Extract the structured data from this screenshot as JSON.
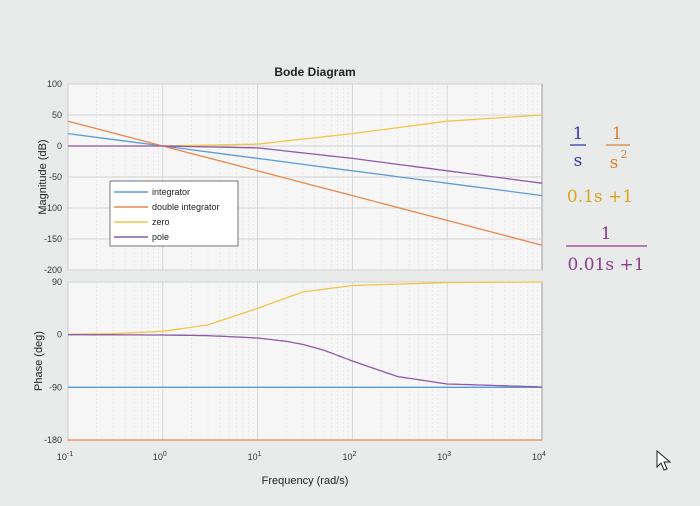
{
  "chart_data": [
    {
      "type": "line",
      "title": "Bode Diagram",
      "panel": "magnitude",
      "ylabel": "Magnitude (dB)",
      "xlabel": "",
      "xscale": "log",
      "xlim": [
        0.1,
        10000
      ],
      "ylim": [
        -200,
        100
      ],
      "yticks": [
        "100",
        "50",
        "0",
        "-50",
        "-100",
        "-150",
        "-200"
      ],
      "grid": true,
      "legend": {
        "placement": "center-left",
        "entries": [
          "integrator",
          "double integrator",
          "zero",
          "pole"
        ]
      },
      "series": [
        {
          "name": "integrator",
          "color": "#5b9bd5",
          "x": [
            0.1,
            10000
          ],
          "y": [
            20,
            -80
          ]
        },
        {
          "name": "double integrator",
          "color": "#e8874a",
          "x": [
            0.1,
            10000
          ],
          "y": [
            40,
            -160
          ]
        },
        {
          "name": "zero",
          "color": "#f2c54a",
          "x": [
            0.1,
            1,
            10,
            100,
            1000,
            10000
          ],
          "y": [
            0,
            0,
            3,
            20,
            40,
            50
          ]
        },
        {
          "name": "pole",
          "color": "#8e5aa8",
          "x": [
            0.1,
            1,
            10,
            100,
            1000,
            10000
          ],
          "y": [
            0,
            0,
            -3,
            -20,
            -40,
            -60
          ]
        }
      ]
    },
    {
      "type": "line",
      "panel": "phase",
      "ylabel": "Phase (deg)",
      "xlabel": "Frequency  (rad/s)",
      "xscale": "log",
      "xlim": [
        0.1,
        10000
      ],
      "ylim": [
        -180,
        90
      ],
      "yticks": [
        "90",
        "0",
        "-90",
        "-180"
      ],
      "xticks": [
        {
          "base": "10",
          "exp": "-1"
        },
        {
          "base": "10",
          "exp": "0"
        },
        {
          "base": "10",
          "exp": "1"
        },
        {
          "base": "10",
          "exp": "2"
        },
        {
          "base": "10",
          "exp": "3"
        },
        {
          "base": "10",
          "exp": "4"
        }
      ],
      "grid": true,
      "series": [
        {
          "name": "integrator",
          "color": "#5b9bd5",
          "x": [
            0.1,
            10000
          ],
          "y": [
            -90,
            -90
          ]
        },
        {
          "name": "double integrator",
          "color": "#e8874a",
          "x": [
            0.1,
            10000
          ],
          "y": [
            -180,
            -180
          ]
        },
        {
          "name": "zero",
          "color": "#f2c54a",
          "x": [
            0.1,
            0.3,
            1,
            3,
            10,
            30,
            100,
            1000,
            10000
          ],
          "y": [
            0.6,
            1.7,
            5.7,
            16.7,
            45,
            73,
            84,
            89,
            90
          ]
        },
        {
          "name": "pole",
          "color": "#8e5aa8",
          "x": [
            0.1,
            1,
            3,
            10,
            20,
            30,
            50,
            100,
            300,
            1000,
            10000
          ],
          "y": [
            0,
            -0.6,
            -1.7,
            -5.7,
            -11.3,
            -16.7,
            -26.6,
            -45,
            -71.6,
            -84.3,
            -89.4
          ]
        }
      ]
    }
  ],
  "annotations": {
    "num1": "1",
    "den1": "s",
    "num2": "1",
    "den2": "s",
    "den2_exp": "2",
    "zero_expr": "0.1s +1",
    "num3": "1",
    "pole_expr": "0.01s +1",
    "color_blue": "#3a3ab0",
    "color_orange": "#d9823b",
    "color_yellow": "#d9a520",
    "color_purple": "#8e3a8e"
  }
}
